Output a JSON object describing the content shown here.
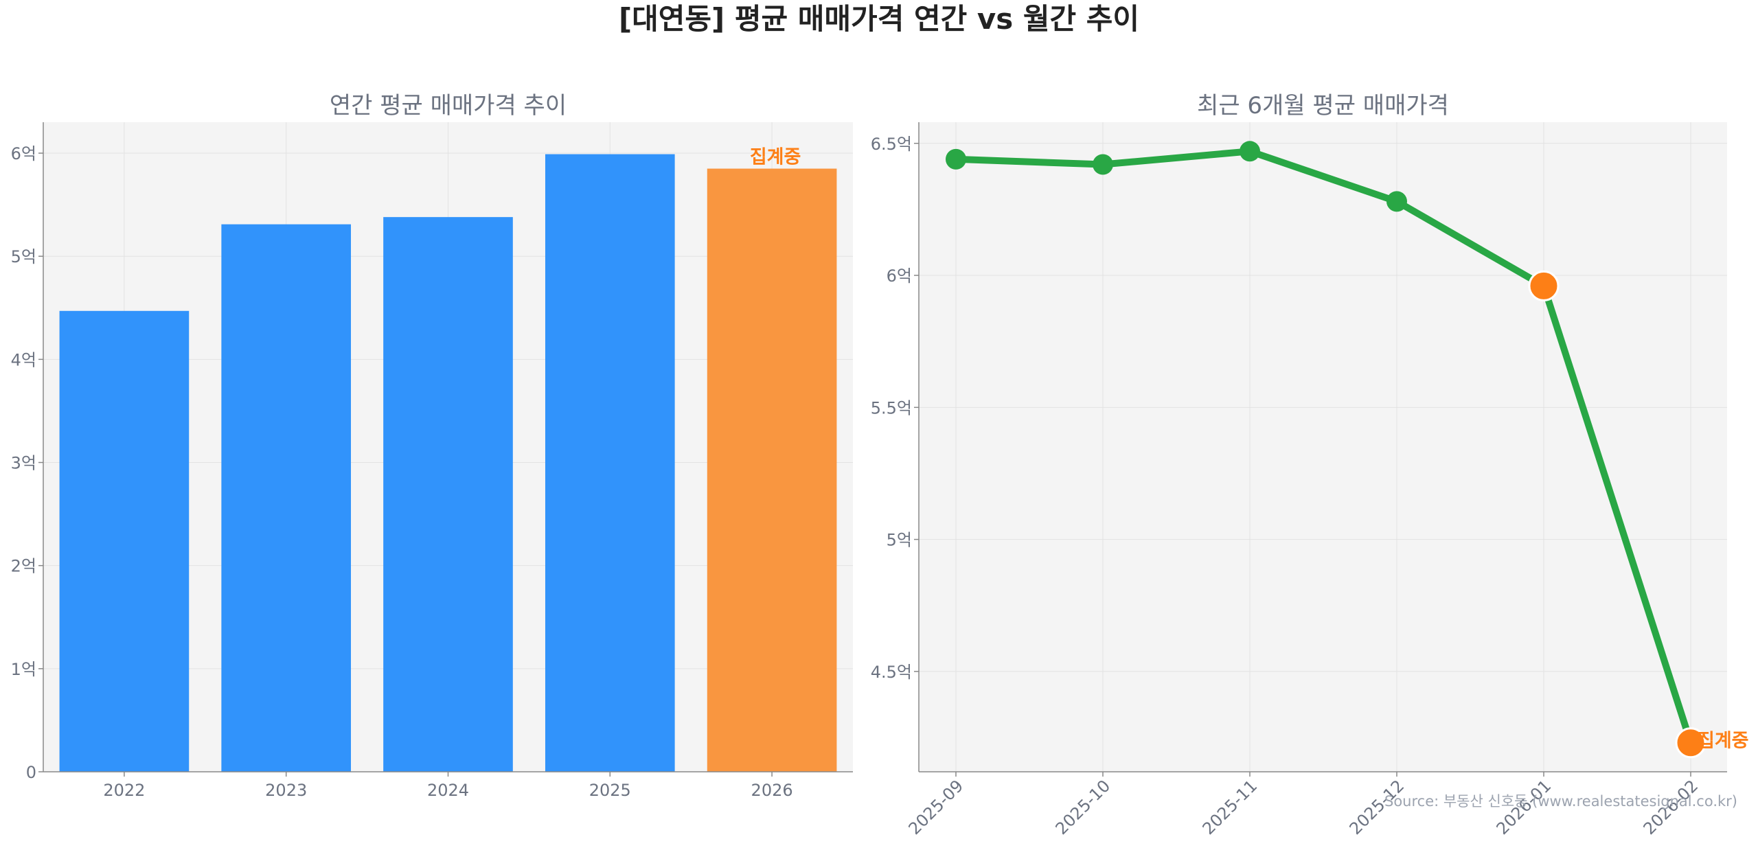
{
  "title": "[대연동] 평균 매매가격 연간 vs 월간 추이",
  "source": "Source: 부동산 신호등 (www.realestatesignal.co.kr)",
  "colors": {
    "bar": "#3193fb",
    "highlight": "#f99640",
    "line": "#29a745",
    "marker_orange": "#fd7f16",
    "panel_bg": "#f4f4f4",
    "grid": "#e2e2e2",
    "axis": "#888888",
    "text": "#6b7280",
    "title": "#222222"
  },
  "chart_data": [
    {
      "type": "bar",
      "title": "연간 평균 매매가격 추이",
      "categories": [
        "2022",
        "2023",
        "2024",
        "2025",
        "2026"
      ],
      "values": [
        4.47,
        5.31,
        5.38,
        5.99,
        5.85
      ],
      "unit": "억",
      "highlight_index": 4,
      "annotation": {
        "index": 4,
        "text": "집계중"
      },
      "ylim": [
        0,
        6.3
      ],
      "yticks": [
        0,
        1,
        2,
        3,
        4,
        5,
        6
      ],
      "ytick_labels": [
        "0",
        "1억",
        "2억",
        "3억",
        "4억",
        "5억",
        "6억"
      ],
      "grid": true
    },
    {
      "type": "line",
      "title": "최근 6개월 평균 매매가격",
      "x": [
        "2025-09",
        "2025-10",
        "2025-11",
        "2025-12",
        "2026-01",
        "2026-02"
      ],
      "values": [
        6.44,
        6.42,
        6.47,
        6.28,
        5.96,
        4.23
      ],
      "unit": "억",
      "highlight_indices": [
        4,
        5
      ],
      "annotation": {
        "index": 5,
        "text": "집계중"
      },
      "ylim": [
        4.12,
        6.58
      ],
      "yticks": [
        4.5,
        5,
        5.5,
        6,
        6.5
      ],
      "ytick_labels": [
        "4.5억",
        "5억",
        "5.5억",
        "6억",
        "6.5억"
      ],
      "grid": true
    }
  ]
}
